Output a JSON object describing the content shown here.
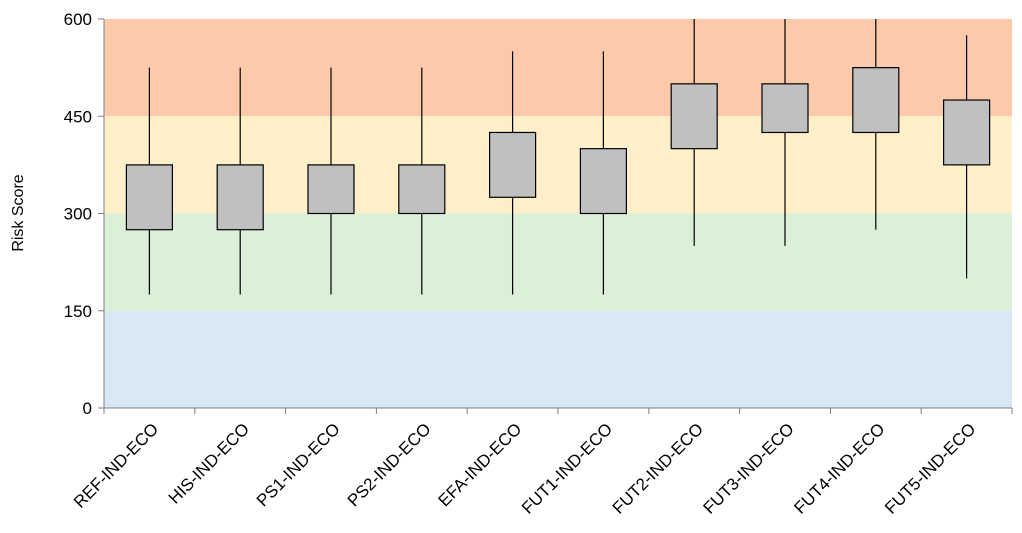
{
  "chart_data": {
    "type": "box",
    "title": "",
    "xlabel": "",
    "ylabel": "Risk Score",
    "ylim": [
      0,
      600
    ],
    "yticks": [
      0,
      150,
      300,
      450,
      600
    ],
    "grid": false,
    "categories": [
      "REF-IND-ECO",
      "HIS-IND-ECO",
      "PS1-IND-ECO",
      "PS2-IND-ECO",
      "EFA-IND-ECO",
      "FUT1-IND-ECO",
      "FUT2-IND-ECO",
      "FUT3-IND-ECO",
      "FUT4-IND-ECO",
      "FUT5-IND-ECO"
    ],
    "boxes": [
      {
        "min": 175,
        "q1": 275,
        "q3": 375,
        "max": 525
      },
      {
        "min": 175,
        "q1": 275,
        "q3": 375,
        "max": 525
      },
      {
        "min": 175,
        "q1": 300,
        "q3": 375,
        "max": 525
      },
      {
        "min": 175,
        "q1": 300,
        "q3": 375,
        "max": 525
      },
      {
        "min": 175,
        "q1": 325,
        "q3": 425,
        "max": 550
      },
      {
        "min": 175,
        "q1": 300,
        "q3": 400,
        "max": 550
      },
      {
        "min": 250,
        "q1": 400,
        "q3": 500,
        "max": 600
      },
      {
        "min": 250,
        "q1": 425,
        "q3": 500,
        "max": 600
      },
      {
        "min": 275,
        "q1": 425,
        "q3": 525,
        "max": 600
      },
      {
        "min": 200,
        "q1": 375,
        "q3": 475,
        "max": 575
      }
    ],
    "bands": [
      {
        "from": 0,
        "to": 150,
        "color": "#d9e8f5"
      },
      {
        "from": 150,
        "to": 300,
        "color": "#dcefd8"
      },
      {
        "from": 300,
        "to": 450,
        "color": "#fdefc8"
      },
      {
        "from": 450,
        "to": 600,
        "color": "#fdc9ab"
      }
    ],
    "box_color": "#c0c0c0"
  }
}
